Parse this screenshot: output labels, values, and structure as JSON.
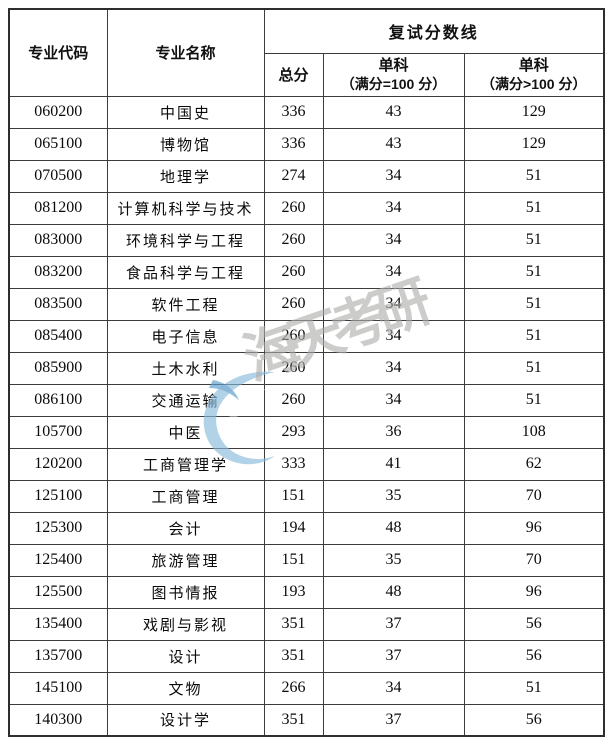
{
  "watermark": {
    "text": "海天考研",
    "swirl_color": "#86b8dc",
    "text_color": "#aeadac"
  },
  "table": {
    "header": {
      "col_code": "专业代码",
      "col_name": "专业名称",
      "group_retest": "复试分数线",
      "col_total": "总分",
      "col_single_100_line1": "单科",
      "col_single_100_line2": "（满分=100 分）",
      "col_single_over100_line1": "单科",
      "col_single_over100_line2": "（满分>100 分）"
    },
    "rows": [
      {
        "code": "060200",
        "name": "中国史",
        "total": "336",
        "single_100": "43",
        "single_over_100": "129"
      },
      {
        "code": "065100",
        "name": "博物馆",
        "total": "336",
        "single_100": "43",
        "single_over_100": "129"
      },
      {
        "code": "070500",
        "name": "地理学",
        "total": "274",
        "single_100": "34",
        "single_over_100": "51"
      },
      {
        "code": "081200",
        "name": "计算机科学与技术",
        "total": "260",
        "single_100": "34",
        "single_over_100": "51"
      },
      {
        "code": "083000",
        "name": "环境科学与工程",
        "total": "260",
        "single_100": "34",
        "single_over_100": "51"
      },
      {
        "code": "083200",
        "name": "食品科学与工程",
        "total": "260",
        "single_100": "34",
        "single_over_100": "51"
      },
      {
        "code": "083500",
        "name": "软件工程",
        "total": "260",
        "single_100": "34",
        "single_over_100": "51"
      },
      {
        "code": "085400",
        "name": "电子信息",
        "total": "260",
        "single_100": "34",
        "single_over_100": "51"
      },
      {
        "code": "085900",
        "name": "土木水利",
        "total": "260",
        "single_100": "34",
        "single_over_100": "51"
      },
      {
        "code": "086100",
        "name": "交通运输",
        "total": "260",
        "single_100": "34",
        "single_over_100": "51"
      },
      {
        "code": "105700",
        "name": "中医",
        "total": "293",
        "single_100": "36",
        "single_over_100": "108"
      },
      {
        "code": "120200",
        "name": "工商管理学",
        "total": "333",
        "single_100": "41",
        "single_over_100": "62"
      },
      {
        "code": "125100",
        "name": "工商管理",
        "total": "151",
        "single_100": "35",
        "single_over_100": "70"
      },
      {
        "code": "125300",
        "name": "会计",
        "total": "194",
        "single_100": "48",
        "single_over_100": "96"
      },
      {
        "code": "125400",
        "name": "旅游管理",
        "total": "151",
        "single_100": "35",
        "single_over_100": "70"
      },
      {
        "code": "125500",
        "name": "图书情报",
        "total": "193",
        "single_100": "48",
        "single_over_100": "96"
      },
      {
        "code": "135400",
        "name": "戏剧与影视",
        "total": "351",
        "single_100": "37",
        "single_over_100": "56"
      },
      {
        "code": "135700",
        "name": "设计",
        "total": "351",
        "single_100": "37",
        "single_over_100": "56"
      },
      {
        "code": "145100",
        "name": "文物",
        "total": "266",
        "single_100": "34",
        "single_over_100": "51"
      },
      {
        "code": "140300",
        "name": "设计学",
        "total": "351",
        "single_100": "37",
        "single_over_100": "56"
      }
    ]
  }
}
